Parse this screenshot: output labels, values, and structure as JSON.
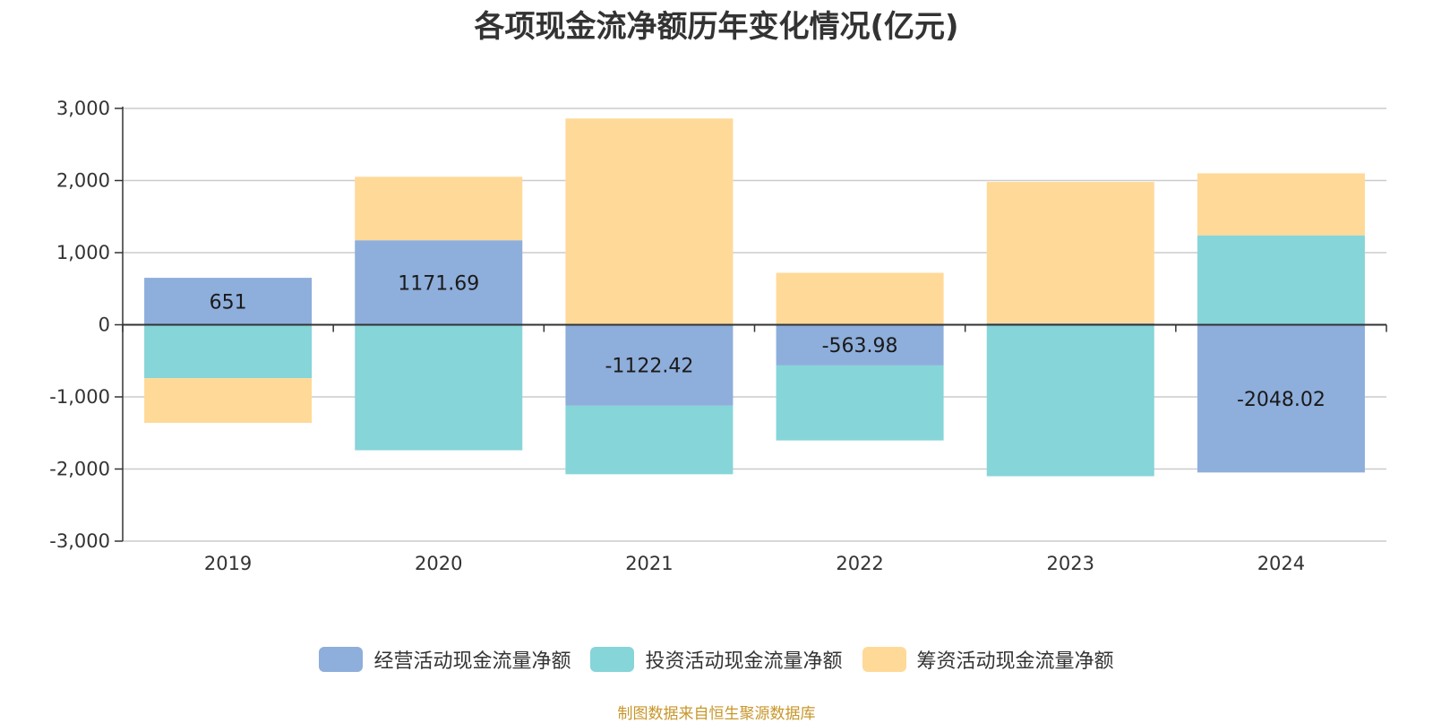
{
  "title": "各项现金流净额历年变化情况(亿元)",
  "source_note": "制图数据来自恒生聚源数据库",
  "colors": {
    "operating": "#8eaedb",
    "investing": "#86d5d8",
    "financing": "#ffd998",
    "grid": "#cccccc",
    "axis": "#333333"
  },
  "chart_data": {
    "type": "bar",
    "stacked": true,
    "title": "各项现金流净额历年变化情况(亿元)",
    "xlabel": "",
    "ylabel": "",
    "ylim": [
      -3000,
      3000
    ],
    "yticks": [
      3000,
      2000,
      1000,
      0,
      -1000,
      -2000,
      -3000
    ],
    "ytick_labels": [
      "3,000",
      "2,000",
      "1,000",
      "0",
      "-1,000",
      "-2,000",
      "-3,000"
    ],
    "grid": true,
    "legend_position": "bottom",
    "categories": [
      "2019",
      "2020",
      "2021",
      "2022",
      "2023",
      "2024"
    ],
    "series": [
      {
        "name": "经营活动现金流量净额",
        "color_key": "operating",
        "values": [
          651,
          1171.69,
          -1122.42,
          -563.98,
          20,
          -2048.02
        ],
        "labels": [
          "651",
          "1171.69",
          "-1122.42",
          "-563.98",
          "",
          "-2048.02"
        ]
      },
      {
        "name": "投资活动现金流量净额",
        "color_key": "investing",
        "values": [
          -740,
          -1740,
          -950,
          -1040,
          -2100,
          1240
        ],
        "labels": [
          "",
          "",
          "",
          "",
          "",
          ""
        ]
      },
      {
        "name": "筹资活动现金流量净额",
        "color_key": "financing",
        "values": [
          -620,
          880,
          2860,
          720,
          1960,
          860
        ],
        "labels": [
          "",
          "",
          "",
          "",
          "",
          ""
        ]
      }
    ]
  }
}
